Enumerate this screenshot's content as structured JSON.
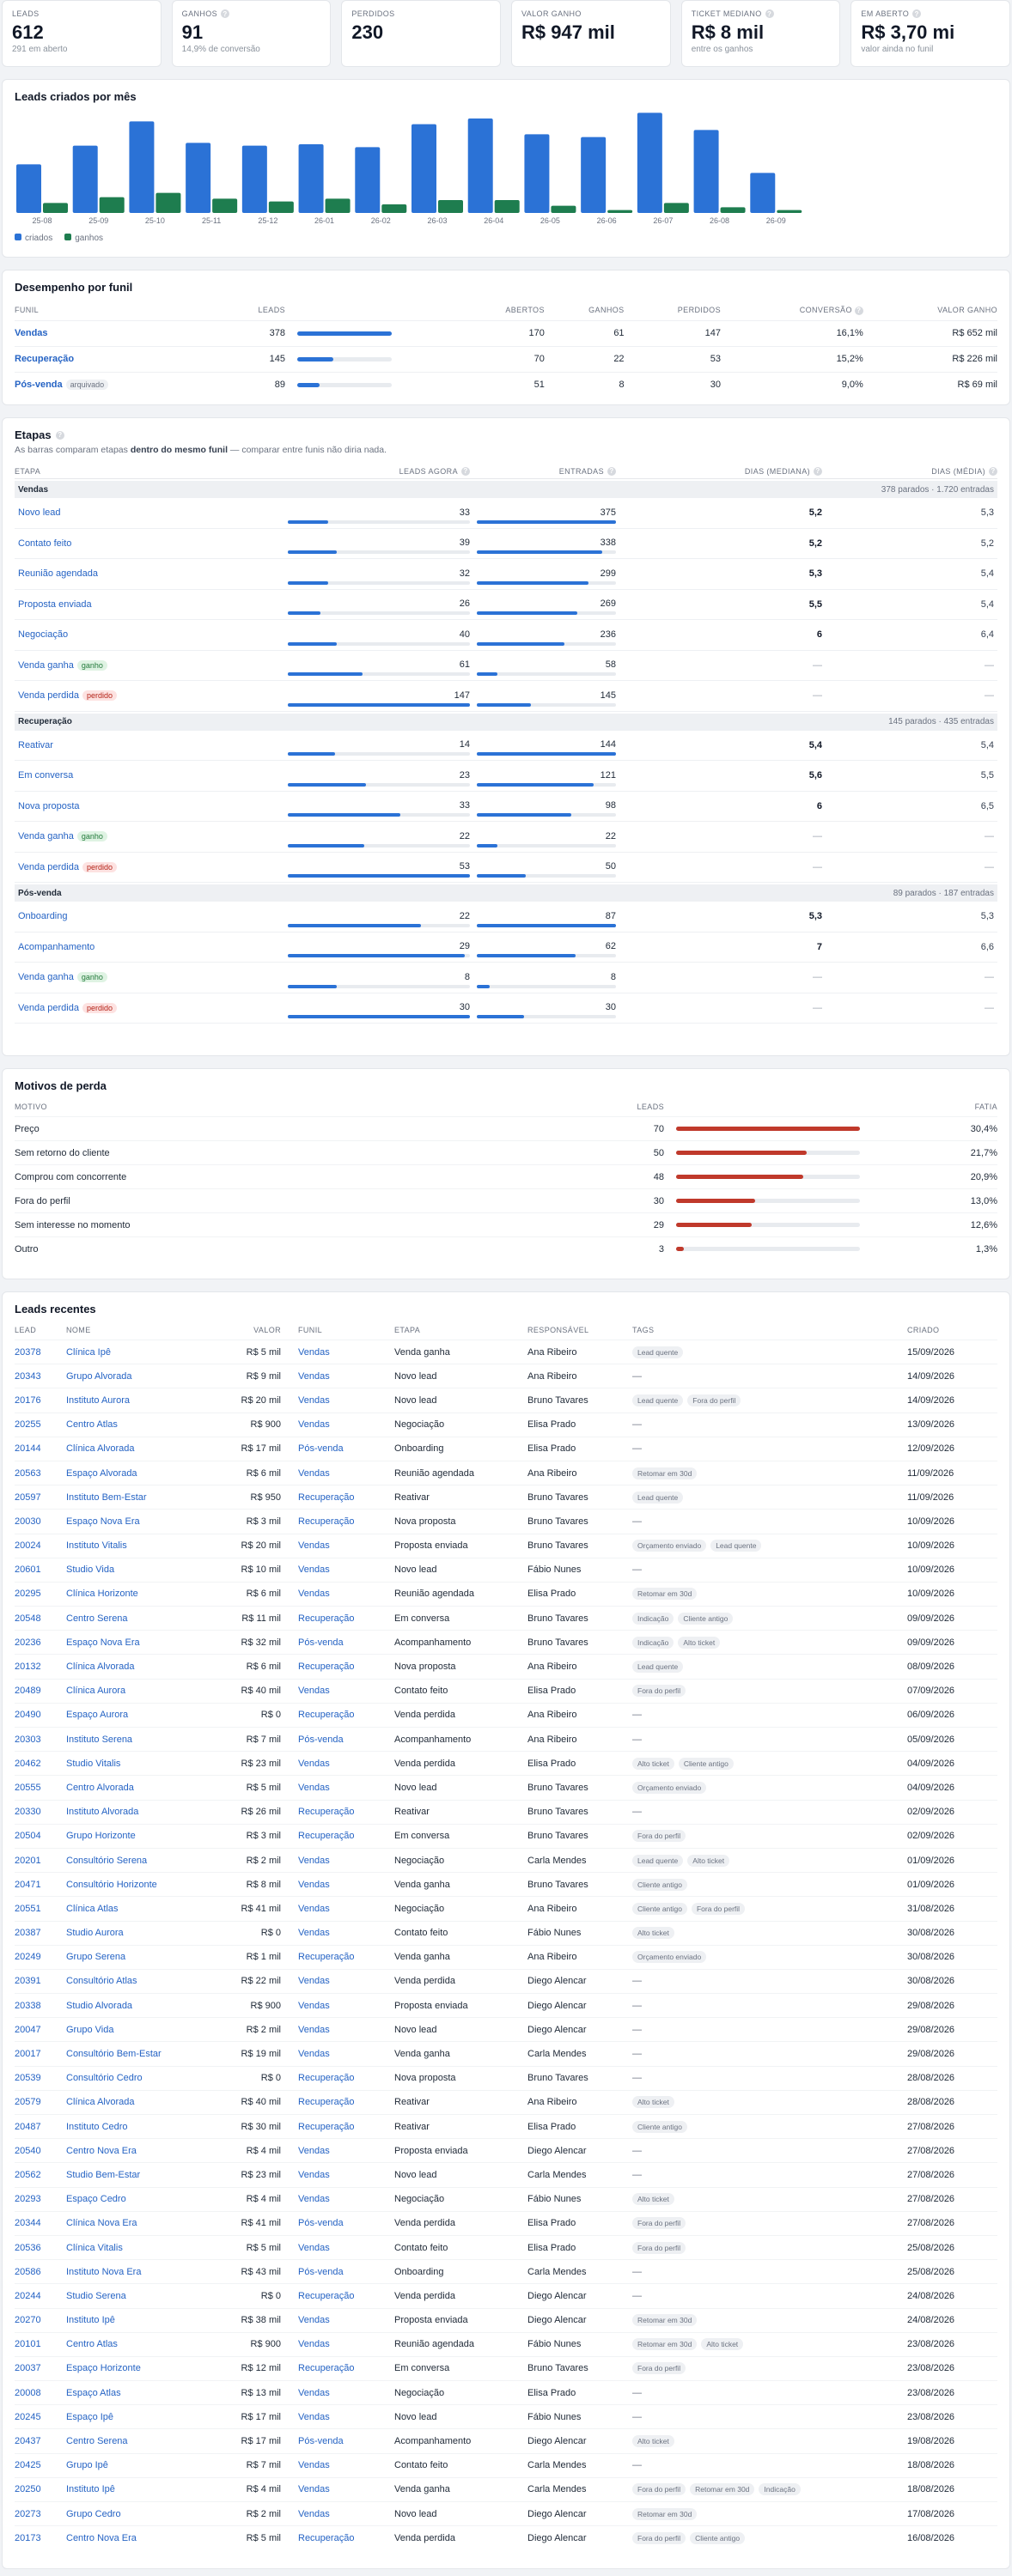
{
  "kpis": [
    {
      "label": "LEADS",
      "value": "612",
      "sub": "291 em aberto",
      "help": false
    },
    {
      "label": "GANHOS",
      "value": "91",
      "sub": "14,9% de conversão",
      "help": true
    },
    {
      "label": "PERDIDOS",
      "value": "230",
      "sub": "",
      "help": false
    },
    {
      "label": "VALOR GANHO",
      "value": "R$ 947 mil",
      "sub": "",
      "help": false
    },
    {
      "label": "TICKET MEDIANO",
      "value": "R$ 8 mil",
      "sub": "entre os ganhos",
      "help": true
    },
    {
      "label": "EM ABERTO",
      "value": "R$ 3,70 mi",
      "sub": "valor ainda no funil",
      "help": true
    }
  ],
  "monthly": {
    "title": "Leads criados por mês",
    "legend": [
      "criados",
      "ganhos"
    ],
    "colors": {
      "criados": "#2b72d6",
      "ganhos": "#1e7d4f"
    },
    "chart_data": {
      "type": "bar",
      "categories": [
        "25-08",
        "25-09",
        "25-10",
        "25-11",
        "25-12",
        "26-01",
        "26-02",
        "26-03",
        "26-04",
        "26-05",
        "26-06",
        "26-07",
        "26-08",
        "26-09"
      ],
      "series": [
        {
          "name": "criados",
          "values": [
            34,
            47,
            64,
            49,
            47,
            48,
            46,
            62,
            66,
            55,
            53,
            70,
            58,
            28
          ]
        },
        {
          "name": "ganhos",
          "values": [
            7,
            11,
            14,
            10,
            8,
            10,
            6,
            9,
            9,
            5,
            2,
            7,
            4,
            2
          ]
        }
      ],
      "ylim": [
        0,
        72
      ]
    }
  },
  "funnel": {
    "title": "Desempenho por funil",
    "headers": [
      "FUNIL",
      "LEADS",
      "ABERTOS",
      "GANHOS",
      "PERDIDOS",
      "CONVERSÃO",
      "VALOR GANHO"
    ],
    "rows": [
      {
        "name": "Vendas",
        "badge": "",
        "leads": "378",
        "share": 1.0,
        "open": "170",
        "won": "61",
        "lost": "147",
        "conv": "16,1%",
        "value": "R$ 652 mil"
      },
      {
        "name": "Recuperação",
        "badge": "",
        "leads": "145",
        "share": 0.38,
        "open": "70",
        "won": "22",
        "lost": "53",
        "conv": "15,2%",
        "value": "R$ 226 mil"
      },
      {
        "name": "Pós-venda",
        "badge": "arquivado",
        "leads": "89",
        "share": 0.24,
        "open": "51",
        "won": "8",
        "lost": "30",
        "conv": "9,0%",
        "value": "R$ 69 mil"
      }
    ]
  },
  "stages": {
    "title": "Etapas",
    "note_a": "As barras comparam etapas ",
    "note_b": "dentro do mesmo funil",
    "note_c": " — comparar entre funis não diria nada.",
    "headers": [
      "ETAPA",
      "LEADS AGORA",
      "ENTRADAS",
      "DIAS (MEDIANA)",
      "DIAS (MÉDIA)"
    ],
    "groups": [
      {
        "name": "Vendas",
        "summary": "378 parados · 1.720 entradas",
        "rows": [
          {
            "name": "Novo lead",
            "badge": "",
            "badge_type": "",
            "now": "33",
            "now_f": 0.22,
            "in": "375",
            "in_f": 1.0,
            "med": "5,2",
            "avg": "5,3"
          },
          {
            "name": "Contato feito",
            "badge": "",
            "badge_type": "",
            "now": "39",
            "now_f": 0.27,
            "in": "338",
            "in_f": 0.9,
            "med": "5,2",
            "avg": "5,2"
          },
          {
            "name": "Reunião agendada",
            "badge": "",
            "badge_type": "",
            "now": "32",
            "now_f": 0.22,
            "in": "299",
            "in_f": 0.8,
            "med": "5,3",
            "avg": "5,4"
          },
          {
            "name": "Proposta enviada",
            "badge": "",
            "badge_type": "",
            "now": "26",
            "now_f": 0.18,
            "in": "269",
            "in_f": 0.72,
            "med": "5,5",
            "avg": "5,4"
          },
          {
            "name": "Negociação",
            "badge": "",
            "badge_type": "",
            "now": "40",
            "now_f": 0.27,
            "in": "236",
            "in_f": 0.63,
            "med": "6",
            "avg": "6,4"
          },
          {
            "name": "Venda ganha",
            "badge": "ganho",
            "badge_type": "green",
            "now": "61",
            "now_f": 0.41,
            "in": "58",
            "in_f": 0.15,
            "med": "—",
            "avg": "—"
          },
          {
            "name": "Venda perdida",
            "badge": "perdido",
            "badge_type": "red",
            "now": "147",
            "now_f": 1.0,
            "in": "145",
            "in_f": 0.39,
            "med": "—",
            "avg": "—"
          }
        ]
      },
      {
        "name": "Recuperação",
        "summary": "145 parados · 435 entradas",
        "rows": [
          {
            "name": "Reativar",
            "badge": "",
            "badge_type": "",
            "now": "14",
            "now_f": 0.26,
            "in": "144",
            "in_f": 1.0,
            "med": "5,4",
            "avg": "5,4"
          },
          {
            "name": "Em conversa",
            "badge": "",
            "badge_type": "",
            "now": "23",
            "now_f": 0.43,
            "in": "121",
            "in_f": 0.84,
            "med": "5,6",
            "avg": "5,5"
          },
          {
            "name": "Nova proposta",
            "badge": "",
            "badge_type": "",
            "now": "33",
            "now_f": 0.62,
            "in": "98",
            "in_f": 0.68,
            "med": "6",
            "avg": "6,5"
          },
          {
            "name": "Venda ganha",
            "badge": "ganho",
            "badge_type": "green",
            "now": "22",
            "now_f": 0.42,
            "in": "22",
            "in_f": 0.15,
            "med": "—",
            "avg": "—"
          },
          {
            "name": "Venda perdida",
            "badge": "perdido",
            "badge_type": "red",
            "now": "53",
            "now_f": 1.0,
            "in": "50",
            "in_f": 0.35,
            "med": "—",
            "avg": "—"
          }
        ]
      },
      {
        "name": "Pós-venda",
        "summary": "89 parados · 187 entradas",
        "rows": [
          {
            "name": "Onboarding",
            "badge": "",
            "badge_type": "",
            "now": "22",
            "now_f": 0.73,
            "in": "87",
            "in_f": 1.0,
            "med": "5,3",
            "avg": "5,3"
          },
          {
            "name": "Acompanhamento",
            "badge": "",
            "badge_type": "",
            "now": "29",
            "now_f": 0.97,
            "in": "62",
            "in_f": 0.71,
            "med": "7",
            "avg": "6,6"
          },
          {
            "name": "Venda ganha",
            "badge": "ganho",
            "badge_type": "green",
            "now": "8",
            "now_f": 0.27,
            "in": "8",
            "in_f": 0.09,
            "med": "—",
            "avg": "—"
          },
          {
            "name": "Venda perdida",
            "badge": "perdido",
            "badge_type": "red",
            "now": "30",
            "now_f": 1.0,
            "in": "30",
            "in_f": 0.34,
            "med": "—",
            "avg": "—"
          }
        ]
      }
    ]
  },
  "loss": {
    "title": "Motivos de perda",
    "headers": [
      "MOTIVO",
      "LEADS",
      "FATIA"
    ],
    "rows": [
      {
        "reason": "Preço",
        "leads": "70",
        "frac": 1.0,
        "share": "30,4%"
      },
      {
        "reason": "Sem retorno do cliente",
        "leads": "50",
        "frac": 0.71,
        "share": "21,7%"
      },
      {
        "reason": "Comprou com concorrente",
        "leads": "48",
        "frac": 0.69,
        "share": "20,9%"
      },
      {
        "reason": "Fora do perfil",
        "leads": "30",
        "frac": 0.43,
        "share": "13,0%"
      },
      {
        "reason": "Sem interesse no momento",
        "leads": "29",
        "frac": 0.41,
        "share": "12,6%"
      },
      {
        "reason": "Outro",
        "leads": "3",
        "frac": 0.04,
        "share": "1,3%"
      }
    ]
  },
  "recent": {
    "title": "Leads recentes",
    "headers": [
      "LEAD",
      "NOME",
      "VALOR",
      "FUNIL",
      "ETAPA",
      "RESPONSÁVEL",
      "TAGS",
      "CRIADO"
    ],
    "rows": [
      [
        "20378",
        "Clínica Ipê",
        "R$ 5 mil",
        "Vendas",
        "Venda ganha",
        "Ana Ribeiro",
        [
          "Lead quente"
        ],
        "15/09/2026"
      ],
      [
        "20343",
        "Grupo Alvorada",
        "R$ 9 mil",
        "Vendas",
        "Novo lead",
        "Ana Ribeiro",
        [],
        "14/09/2026"
      ],
      [
        "20176",
        "Instituto Aurora",
        "R$ 20 mil",
        "Vendas",
        "Novo lead",
        "Bruno Tavares",
        [
          "Lead quente",
          "Fora do perfil"
        ],
        "14/09/2026"
      ],
      [
        "20255",
        "Centro Atlas",
        "R$ 900",
        "Vendas",
        "Negociação",
        "Elisa Prado",
        [],
        "13/09/2026"
      ],
      [
        "20144",
        "Clínica Alvorada",
        "R$ 17 mil",
        "Pós-venda",
        "Onboarding",
        "Elisa Prado",
        [],
        "12/09/2026"
      ],
      [
        "20563",
        "Espaço Alvorada",
        "R$ 6 mil",
        "Vendas",
        "Reunião agendada",
        "Ana Ribeiro",
        [
          "Retomar em 30d"
        ],
        "11/09/2026"
      ],
      [
        "20597",
        "Instituto Bem-Estar",
        "R$ 950",
        "Recuperação",
        "Reativar",
        "Bruno Tavares",
        [
          "Lead quente"
        ],
        "11/09/2026"
      ],
      [
        "20030",
        "Espaço Nova Era",
        "R$ 3 mil",
        "Recuperação",
        "Nova proposta",
        "Bruno Tavares",
        [],
        "10/09/2026"
      ],
      [
        "20024",
        "Instituto Vitalis",
        "R$ 20 mil",
        "Vendas",
        "Proposta enviada",
        "Bruno Tavares",
        [
          "Orçamento enviado",
          "Lead quente"
        ],
        "10/09/2026"
      ],
      [
        "20601",
        "Studio Vida",
        "R$ 10 mil",
        "Vendas",
        "Novo lead",
        "Fábio Nunes",
        [],
        "10/09/2026"
      ],
      [
        "20295",
        "Clínica Horizonte",
        "R$ 6 mil",
        "Vendas",
        "Reunião agendada",
        "Elisa Prado",
        [
          "Retomar em 30d"
        ],
        "10/09/2026"
      ],
      [
        "20548",
        "Centro Serena",
        "R$ 11 mil",
        "Recuperação",
        "Em conversa",
        "Bruno Tavares",
        [
          "Indicação",
          "Cliente antigo"
        ],
        "09/09/2026"
      ],
      [
        "20236",
        "Espaço Nova Era",
        "R$ 32 mil",
        "Pós-venda",
        "Acompanhamento",
        "Bruno Tavares",
        [
          "Indicação",
          "Alto ticket"
        ],
        "09/09/2026"
      ],
      [
        "20132",
        "Clínica Alvorada",
        "R$ 6 mil",
        "Recuperação",
        "Nova proposta",
        "Ana Ribeiro",
        [
          "Lead quente"
        ],
        "08/09/2026"
      ],
      [
        "20489",
        "Clínica Aurora",
        "R$ 40 mil",
        "Vendas",
        "Contato feito",
        "Elisa Prado",
        [
          "Fora do perfil"
        ],
        "07/09/2026"
      ],
      [
        "20490",
        "Espaço Aurora",
        "R$ 0",
        "Recuperação",
        "Venda perdida",
        "Ana Ribeiro",
        [],
        "06/09/2026"
      ],
      [
        "20303",
        "Instituto Serena",
        "R$ 7 mil",
        "Pós-venda",
        "Acompanhamento",
        "Ana Ribeiro",
        [],
        "05/09/2026"
      ],
      [
        "20462",
        "Studio Vitalis",
        "R$ 23 mil",
        "Vendas",
        "Venda perdida",
        "Elisa Prado",
        [
          "Alto ticket",
          "Cliente antigo"
        ],
        "04/09/2026"
      ],
      [
        "20555",
        "Centro Alvorada",
        "R$ 5 mil",
        "Vendas",
        "Novo lead",
        "Bruno Tavares",
        [
          "Orçamento enviado"
        ],
        "04/09/2026"
      ],
      [
        "20330",
        "Instituto Alvorada",
        "R$ 26 mil",
        "Recuperação",
        "Reativar",
        "Bruno Tavares",
        [],
        "02/09/2026"
      ],
      [
        "20504",
        "Grupo Horizonte",
        "R$ 3 mil",
        "Recuperação",
        "Em conversa",
        "Bruno Tavares",
        [
          "Fora do perfil"
        ],
        "02/09/2026"
      ],
      [
        "20201",
        "Consultório Serena",
        "R$ 2 mil",
        "Vendas",
        "Negociação",
        "Carla Mendes",
        [
          "Lead quente",
          "Alto ticket"
        ],
        "01/09/2026"
      ],
      [
        "20471",
        "Consultório Horizonte",
        "R$ 8 mil",
        "Vendas",
        "Venda ganha",
        "Bruno Tavares",
        [
          "Cliente antigo"
        ],
        "01/09/2026"
      ],
      [
        "20551",
        "Clínica Atlas",
        "R$ 41 mil",
        "Vendas",
        "Negociação",
        "Ana Ribeiro",
        [
          "Cliente antigo",
          "Fora do perfil"
        ],
        "31/08/2026"
      ],
      [
        "20387",
        "Studio Aurora",
        "R$ 0",
        "Vendas",
        "Contato feito",
        "Fábio Nunes",
        [
          "Alto ticket"
        ],
        "30/08/2026"
      ],
      [
        "20249",
        "Grupo Serena",
        "R$ 1 mil",
        "Recuperação",
        "Venda ganha",
        "Ana Ribeiro",
        [
          "Orçamento enviado"
        ],
        "30/08/2026"
      ],
      [
        "20391",
        "Consultório Atlas",
        "R$ 22 mil",
        "Vendas",
        "Venda perdida",
        "Diego Alencar",
        [],
        "30/08/2026"
      ],
      [
        "20338",
        "Studio Alvorada",
        "R$ 900",
        "Vendas",
        "Proposta enviada",
        "Diego Alencar",
        [],
        "29/08/2026"
      ],
      [
        "20047",
        "Grupo Vida",
        "R$ 2 mil",
        "Vendas",
        "Novo lead",
        "Diego Alencar",
        [],
        "29/08/2026"
      ],
      [
        "20017",
        "Consultório Bem-Estar",
        "R$ 19 mil",
        "Vendas",
        "Venda ganha",
        "Carla Mendes",
        [],
        "29/08/2026"
      ],
      [
        "20539",
        "Consultório Cedro",
        "R$ 0",
        "Recuperação",
        "Nova proposta",
        "Bruno Tavares",
        [],
        "28/08/2026"
      ],
      [
        "20579",
        "Clínica Alvorada",
        "R$ 40 mil",
        "Recuperação",
        "Reativar",
        "Ana Ribeiro",
        [
          "Alto ticket"
        ],
        "28/08/2026"
      ],
      [
        "20487",
        "Instituto Cedro",
        "R$ 30 mil",
        "Recuperação",
        "Reativar",
        "Elisa Prado",
        [
          "Cliente antigo"
        ],
        "27/08/2026"
      ],
      [
        "20540",
        "Centro Nova Era",
        "R$ 4 mil",
        "Vendas",
        "Proposta enviada",
        "Diego Alencar",
        [],
        "27/08/2026"
      ],
      [
        "20562",
        "Studio Bem-Estar",
        "R$ 23 mil",
        "Vendas",
        "Novo lead",
        "Carla Mendes",
        [],
        "27/08/2026"
      ],
      [
        "20293",
        "Espaço Cedro",
        "R$ 4 mil",
        "Vendas",
        "Negociação",
        "Fábio Nunes",
        [
          "Alto ticket"
        ],
        "27/08/2026"
      ],
      [
        "20344",
        "Clínica Nova Era",
        "R$ 41 mil",
        "Pós-venda",
        "Venda perdida",
        "Elisa Prado",
        [
          "Fora do perfil"
        ],
        "27/08/2026"
      ],
      [
        "20536",
        "Clínica Vitalis",
        "R$ 5 mil",
        "Vendas",
        "Contato feito",
        "Elisa Prado",
        [
          "Fora do perfil"
        ],
        "25/08/2026"
      ],
      [
        "20586",
        "Instituto Nova Era",
        "R$ 43 mil",
        "Pós-venda",
        "Onboarding",
        "Carla Mendes",
        [],
        "25/08/2026"
      ],
      [
        "20244",
        "Studio Serena",
        "R$ 0",
        "Recuperação",
        "Venda perdida",
        "Diego Alencar",
        [],
        "24/08/2026"
      ],
      [
        "20270",
        "Instituto Ipê",
        "R$ 38 mil",
        "Vendas",
        "Proposta enviada",
        "Diego Alencar",
        [
          "Retomar em 30d"
        ],
        "24/08/2026"
      ],
      [
        "20101",
        "Centro Atlas",
        "R$ 900",
        "Vendas",
        "Reunião agendada",
        "Fábio Nunes",
        [
          "Retomar em 30d",
          "Alto ticket"
        ],
        "23/08/2026"
      ],
      [
        "20037",
        "Espaço Horizonte",
        "R$ 12 mil",
        "Recuperação",
        "Em conversa",
        "Bruno Tavares",
        [
          "Fora do perfil"
        ],
        "23/08/2026"
      ],
      [
        "20008",
        "Espaço Atlas",
        "R$ 13 mil",
        "Vendas",
        "Negociação",
        "Elisa Prado",
        [],
        "23/08/2026"
      ],
      [
        "20245",
        "Espaço Ipê",
        "R$ 17 mil",
        "Vendas",
        "Novo lead",
        "Fábio Nunes",
        [],
        "23/08/2026"
      ],
      [
        "20437",
        "Centro Serena",
        "R$ 17 mil",
        "Pós-venda",
        "Acompanhamento",
        "Diego Alencar",
        [
          "Alto ticket"
        ],
        "19/08/2026"
      ],
      [
        "20425",
        "Grupo Ipê",
        "R$ 7 mil",
        "Vendas",
        "Contato feito",
        "Carla Mendes",
        [],
        "18/08/2026"
      ],
      [
        "20250",
        "Instituto Ipê",
        "R$ 4 mil",
        "Vendas",
        "Venda ganha",
        "Carla Mendes",
        [
          "Fora do perfil",
          "Retomar em 30d",
          "Indicação"
        ],
        "18/08/2026"
      ],
      [
        "20273",
        "Grupo Cedro",
        "R$ 2 mil",
        "Vendas",
        "Novo lead",
        "Diego Alencar",
        [
          "Retomar em 30d"
        ],
        "17/08/2026"
      ],
      [
        "20173",
        "Centro Nova Era",
        "R$ 5 mil",
        "Recuperação",
        "Venda perdida",
        "Diego Alencar",
        [
          "Fora do perfil",
          "Cliente antigo"
        ],
        "16/08/2026"
      ]
    ]
  }
}
